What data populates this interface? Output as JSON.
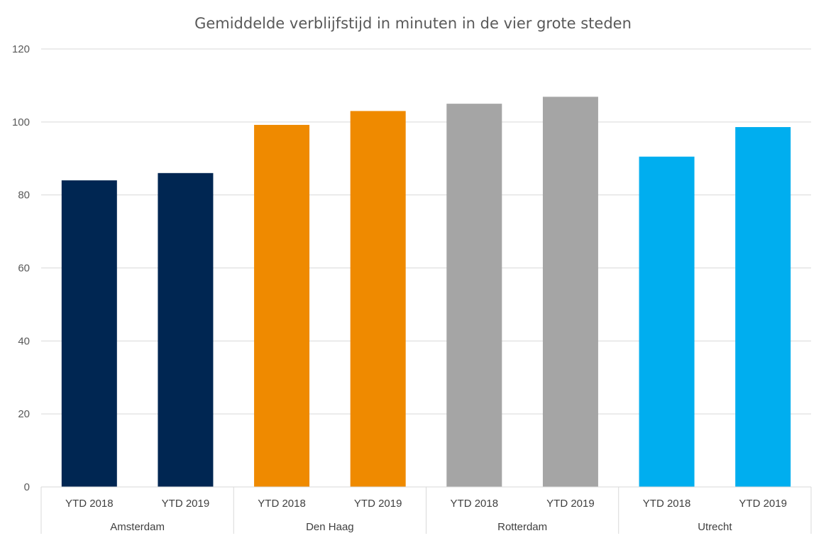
{
  "chart_data": {
    "type": "bar",
    "title": "Gemiddelde verblijfstijd in minuten in de vier grote steden",
    "xlabel": "",
    "ylabel": "",
    "ylim": [
      0,
      120
    ],
    "ytick_step": 20,
    "yticks": [
      "0",
      "20",
      "40",
      "60",
      "80",
      "100",
      "120"
    ],
    "grid": true,
    "legend": "none",
    "groups": [
      {
        "name": "Amsterdam",
        "color": "#002652",
        "bars": [
          {
            "label": "YTD 2018",
            "value": 84
          },
          {
            "label": "YTD 2019",
            "value": 86
          }
        ]
      },
      {
        "name": "Den Haag",
        "color": "#EF8A00",
        "bars": [
          {
            "label": "YTD 2018",
            "value": 99.2
          },
          {
            "label": "YTD 2019",
            "value": 103
          }
        ]
      },
      {
        "name": "Rotterdam",
        "color": "#A5A5A5",
        "bars": [
          {
            "label": "YTD 2018",
            "value": 105
          },
          {
            "label": "YTD 2019",
            "value": 106.9
          }
        ]
      },
      {
        "name": "Utrecht",
        "color": "#00AEEF",
        "bars": [
          {
            "label": "YTD 2018",
            "value": 90.5
          },
          {
            "label": "YTD 2019",
            "value": 98.6
          }
        ]
      }
    ]
  }
}
